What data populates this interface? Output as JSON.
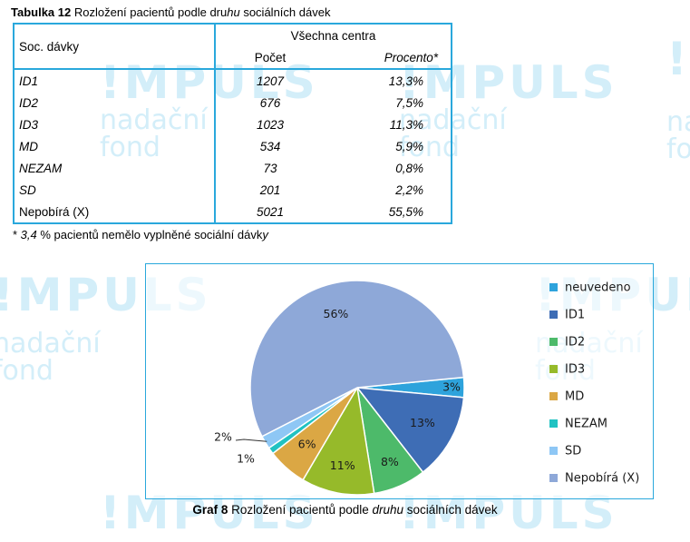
{
  "watermark": {
    "logo": "!MPULS",
    "line1": "nadační",
    "line2": "fond",
    "color": "#d3eef9"
  },
  "table": {
    "caption_label": "Tabulka 12",
    "caption_text_pre": " Rozložení pacientů podle dru",
    "caption_text_italic": "hu",
    "caption_text_post": " sociálních dávek",
    "header": {
      "row_label": "Soc. dávky",
      "group": "Všechna centra",
      "col_count": "Počet",
      "col_percent": "Procento*"
    },
    "rows": [
      {
        "label": "ID1",
        "count": "1207",
        "percent": "13,3%"
      },
      {
        "label": "ID2",
        "count": "676",
        "percent": "7,5%"
      },
      {
        "label": "ID3",
        "count": "1023",
        "percent": "11,3%"
      },
      {
        "label": "MD",
        "count": "534",
        "percent": "5,9%"
      },
      {
        "label": "NEZAM",
        "count": "73",
        "percent": "0,8%"
      },
      {
        "label": "SD",
        "count": "201",
        "percent": "2,2%"
      },
      {
        "label": "Nepobírá (X)",
        "count": "5021",
        "percent": "55,5%"
      }
    ],
    "border_color": "#2aa8dc"
  },
  "footnote": {
    "pre": "* ",
    "value": "3,4",
    "post": " % pacientů nemělo vyplněné sociální dávk",
    "italic_end": "y"
  },
  "chart_data": {
    "type": "pie",
    "title": "",
    "categories": [
      "neuvedeno",
      "ID1",
      "ID2",
      "ID3",
      "MD",
      "NEZAM",
      "SD",
      "Nepobírá (X)"
    ],
    "values": [
      3,
      13,
      8,
      11,
      6,
      1,
      2,
      56
    ],
    "labels": [
      "3%",
      "13%",
      "8%",
      "11%",
      "6%",
      "1%",
      "2%",
      "56%"
    ],
    "colors": [
      "#2ea3dc",
      "#3e6db5",
      "#4dba6a",
      "#96ba2a",
      "#dba744",
      "#20c2c2",
      "#8ec7f5",
      "#8ea8d8"
    ],
    "legend_placement": "right"
  },
  "figure_caption": {
    "label": "Graf 8",
    "text_pre": " Rozložení pacientů podle ",
    "text_italic": "druhu",
    "text_post": " sociálních dávek"
  }
}
